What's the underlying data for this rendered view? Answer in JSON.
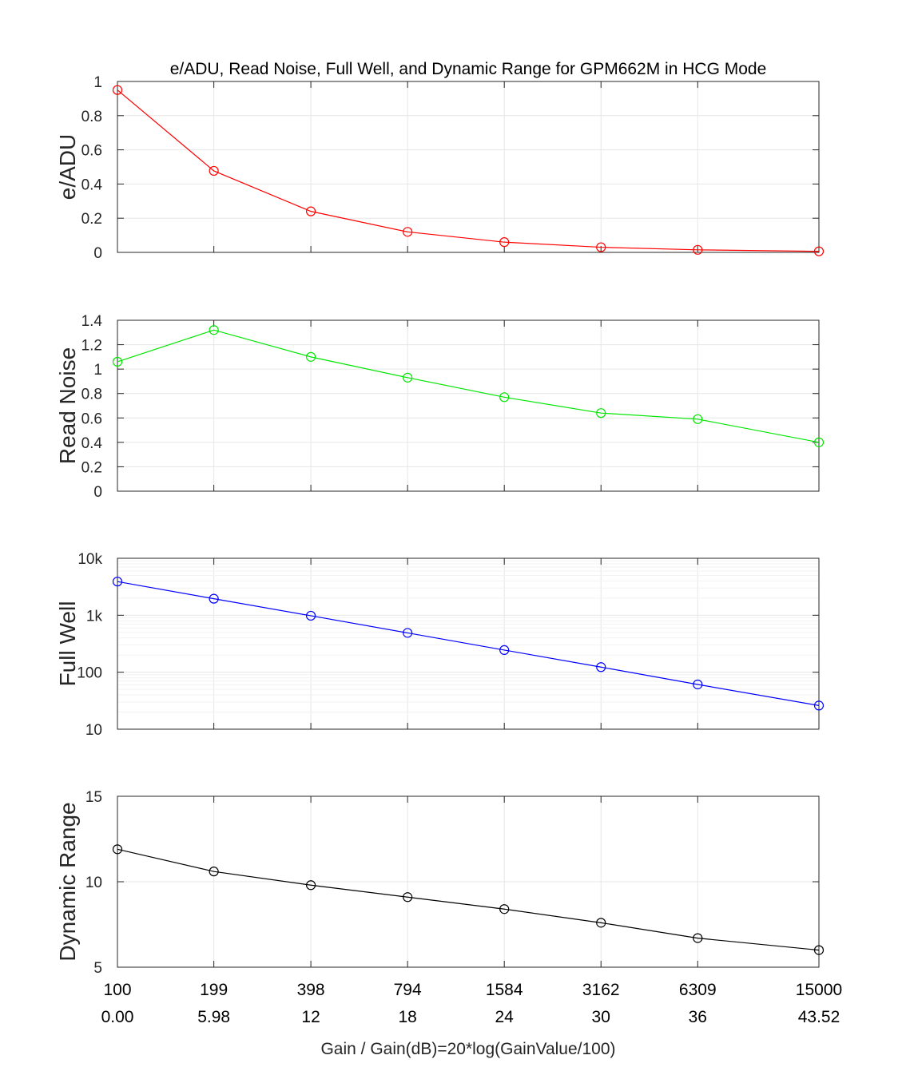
{
  "chart_data": {
    "type": "line",
    "title": "e/ADU, Read Noise, Full Well, and Dynamic Range for GPM662M in HCG Mode",
    "xlabel": "Gain / Gain(dB)=20*log(GainValue/100)",
    "x_tick_labels_gain": [
      "100",
      "199",
      "398",
      "794",
      "1584",
      "3162",
      "6309",
      "15000"
    ],
    "x_tick_labels_db": [
      "0.00",
      "5.98",
      "12",
      "18",
      "24",
      "30",
      "36",
      "43.52"
    ],
    "x": [
      0,
      5.98,
      12,
      18,
      24,
      30,
      36,
      43.52
    ],
    "grid": true,
    "panels": [
      {
        "ylabel": "e/ADU",
        "color": "#ff0000",
        "scale": "linear",
        "ylim": [
          0,
          1
        ],
        "yticks": [
          0,
          0.2,
          0.4,
          0.6,
          0.8,
          1
        ],
        "ytick_labels": [
          "0",
          "0.2",
          "0.4",
          "0.6",
          "0.8",
          "1"
        ],
        "values": [
          0.95,
          0.477,
          0.24,
          0.12,
          0.06,
          0.03,
          0.015,
          0.006
        ]
      },
      {
        "ylabel": "Read Noise",
        "color": "#00e600",
        "scale": "linear",
        "ylim": [
          0,
          1.4
        ],
        "yticks": [
          0,
          0.2,
          0.4,
          0.6,
          0.8,
          1,
          1.2,
          1.4
        ],
        "ytick_labels": [
          "0",
          "0.2",
          "0.4",
          "0.6",
          "0.8",
          "1",
          "1.2",
          "1.4"
        ],
        "values": [
          1.06,
          1.32,
          1.1,
          0.93,
          0.77,
          0.64,
          0.59,
          0.4
        ]
      },
      {
        "ylabel": "Full Well",
        "color": "#0000ff",
        "scale": "log",
        "ylim": [
          10,
          10000
        ],
        "yticks": [
          10,
          100,
          1000,
          10000
        ],
        "ytick_labels": [
          "10",
          "100",
          "1k",
          "10k"
        ],
        "values": [
          3900,
          1950,
          980,
          490,
          245,
          123,
          61,
          26
        ]
      },
      {
        "ylabel": "Dynamic Range",
        "color": "#000000",
        "scale": "linear",
        "ylim": [
          5,
          15
        ],
        "yticks": [
          5,
          10,
          15
        ],
        "ytick_labels": [
          "5",
          "10",
          "15"
        ],
        "values": [
          11.9,
          10.6,
          9.8,
          9.1,
          8.4,
          7.6,
          6.7,
          6.0
        ]
      }
    ]
  }
}
